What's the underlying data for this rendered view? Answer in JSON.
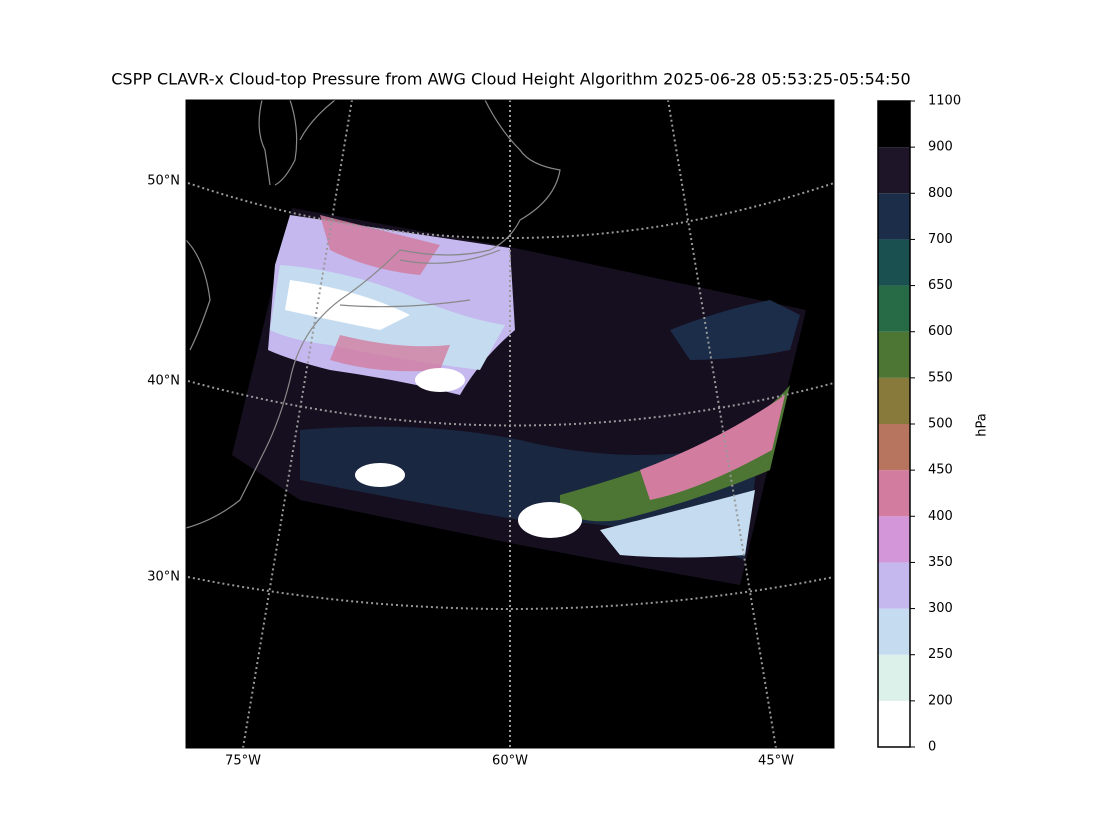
{
  "title": "CSPP CLAVR-x Cloud-top Pressure from AWG Cloud Height Algorithm 2025-06-28 05:53:25-05:54:50",
  "map": {
    "lat_labels": [
      "50°N",
      "40°N",
      "30°N"
    ],
    "lon_labels": [
      "75°W",
      "60°W",
      "45°W"
    ]
  },
  "colorbar": {
    "label": "hPa",
    "ticks": [
      0,
      200,
      250,
      300,
      350,
      400,
      450,
      500,
      550,
      600,
      650,
      700,
      800,
      900,
      1100
    ],
    "colors": [
      "#ffffff",
      "#dcf1ea",
      "#c5dcf0",
      "#c4b8ee",
      "#d396d8",
      "#d27da0",
      "#b77560",
      "#877a3a",
      "#4d7533",
      "#266b45",
      "#1a5050",
      "#1c2d4a",
      "#1e1628",
      "#000000"
    ]
  }
}
